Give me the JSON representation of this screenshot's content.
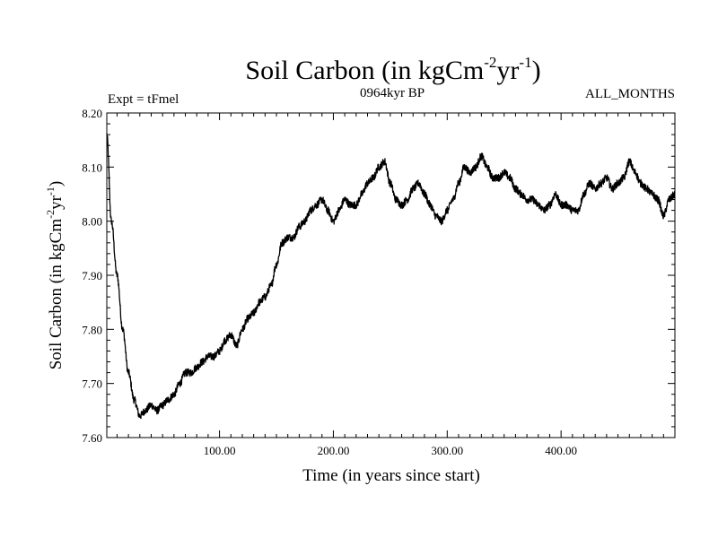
{
  "chart_data": {
    "type": "line",
    "title": {
      "main": "Soil Carbon (in kgCm",
      "sup1": "-2",
      "mid": "yr",
      "sup2": "-1",
      "end": ")"
    },
    "subtitle_left": "Expt = tFmel",
    "subtitle_center": "0964kyr BP",
    "subtitle_right": "ALL_MONTHS",
    "xlabel": "Time (in years since start)",
    "ylabel": {
      "main": "Soil Carbon (in kgCm",
      "sup1": "-2",
      "mid": "yr",
      "sup2": "-1",
      "end": ")"
    },
    "xlim": [
      1,
      500
    ],
    "ylim": [
      7.6,
      8.2
    ],
    "x_ticks": [
      100,
      200,
      300,
      400
    ],
    "x_tick_labels": [
      "100.00",
      "200.00",
      "300.00",
      "400.00"
    ],
    "y_ticks": [
      7.6,
      7.7,
      7.8,
      7.9,
      8.0,
      8.1,
      8.2
    ],
    "y_tick_labels": [
      "7.60",
      "7.70",
      "7.80",
      "7.90",
      "8.00",
      "8.10",
      "8.20"
    ],
    "grid": false,
    "color": "#000000",
    "series": [
      {
        "name": "Soil Carbon",
        "x": [
          1,
          5,
          10,
          15,
          20,
          25,
          30,
          35,
          40,
          45,
          50,
          55,
          60,
          65,
          70,
          75,
          80,
          85,
          90,
          95,
          100,
          105,
          110,
          115,
          120,
          125,
          130,
          135,
          140,
          145,
          150,
          155,
          160,
          165,
          170,
          175,
          180,
          185,
          190,
          195,
          200,
          205,
          210,
          215,
          220,
          225,
          230,
          235,
          240,
          245,
          250,
          255,
          260,
          265,
          270,
          275,
          280,
          285,
          290,
          295,
          300,
          305,
          310,
          315,
          320,
          325,
          330,
          335,
          340,
          345,
          350,
          355,
          360,
          365,
          370,
          375,
          380,
          385,
          390,
          395,
          400,
          405,
          410,
          415,
          420,
          425,
          430,
          435,
          440,
          445,
          450,
          455,
          460,
          465,
          470,
          475,
          480,
          485,
          490,
          495,
          500
        ],
        "values": [
          8.16,
          8.0,
          7.9,
          7.8,
          7.72,
          7.67,
          7.64,
          7.65,
          7.66,
          7.65,
          7.66,
          7.67,
          7.68,
          7.7,
          7.72,
          7.72,
          7.73,
          7.74,
          7.75,
          7.75,
          7.76,
          7.78,
          7.79,
          7.77,
          7.8,
          7.82,
          7.83,
          7.85,
          7.86,
          7.88,
          7.92,
          7.96,
          7.97,
          7.97,
          7.99,
          8.0,
          8.02,
          8.03,
          8.04,
          8.02,
          8.0,
          8.02,
          8.04,
          8.03,
          8.03,
          8.05,
          8.07,
          8.08,
          8.1,
          8.11,
          8.07,
          8.04,
          8.03,
          8.04,
          8.06,
          8.07,
          8.05,
          8.03,
          8.01,
          8.0,
          8.02,
          8.04,
          8.07,
          8.1,
          8.09,
          8.1,
          8.12,
          8.1,
          8.08,
          8.08,
          8.09,
          8.08,
          8.06,
          8.05,
          8.04,
          8.04,
          8.03,
          8.02,
          8.03,
          8.05,
          8.03,
          8.03,
          8.02,
          8.02,
          8.05,
          8.07,
          8.06,
          8.07,
          8.08,
          8.06,
          8.07,
          8.08,
          8.11,
          8.09,
          8.07,
          8.06,
          8.05,
          8.04,
          8.01,
          8.04,
          8.05
        ]
      }
    ]
  }
}
